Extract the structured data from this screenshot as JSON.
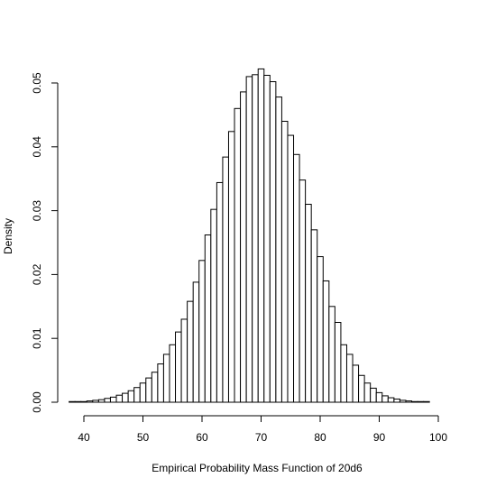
{
  "chart_data": {
    "type": "bar",
    "title": "",
    "xlabel": "Empirical Probability Mass Function of 20d6",
    "ylabel": "Density",
    "xlim": [
      38,
      102
    ],
    "ylim": [
      0,
      0.052
    ],
    "grid": false,
    "x_ticks": [
      40,
      50,
      60,
      70,
      80,
      90,
      100
    ],
    "y_ticks": [
      0.0,
      0.01,
      0.02,
      0.03,
      0.04,
      0.05
    ],
    "y_tick_labels": [
      "0.00",
      "0.01",
      "0.02",
      "0.03",
      "0.04",
      "0.05"
    ],
    "bin_width": 1,
    "x": [
      38,
      39,
      40,
      41,
      42,
      43,
      44,
      45,
      46,
      47,
      48,
      49,
      50,
      51,
      52,
      53,
      54,
      55,
      56,
      57,
      58,
      59,
      60,
      61,
      62,
      63,
      64,
      65,
      66,
      67,
      68,
      69,
      70,
      71,
      72,
      73,
      74,
      75,
      76,
      77,
      78,
      79,
      80,
      81,
      82,
      83,
      84,
      85,
      86,
      87,
      88,
      89,
      90,
      91,
      92,
      93,
      94,
      95,
      96,
      97,
      98,
      99,
      100,
      101
    ],
    "values": [
      0.0001,
      0.0001,
      0.0001,
      0.0002,
      0.0003,
      0.0004,
      0.0006,
      0.0008,
      0.0011,
      0.0014,
      0.0018,
      0.0023,
      0.003,
      0.0038,
      0.0047,
      0.006,
      0.0075,
      0.009,
      0.011,
      0.013,
      0.0158,
      0.0188,
      0.0222,
      0.0262,
      0.0302,
      0.0344,
      0.0384,
      0.0424,
      0.046,
      0.0486,
      0.051,
      0.0513,
      0.0522,
      0.0512,
      0.0502,
      0.0478,
      0.044,
      0.0418,
      0.0388,
      0.0348,
      0.031,
      0.027,
      0.0228,
      0.019,
      0.015,
      0.0125,
      0.009,
      0.0075,
      0.0058,
      0.0042,
      0.003,
      0.0022,
      0.0015,
      0.001,
      0.0007,
      0.0005,
      0.0003,
      0.0002,
      0.0001,
      0.0001,
      0.0001,
      0.0,
      0.0,
      0.0
    ]
  }
}
